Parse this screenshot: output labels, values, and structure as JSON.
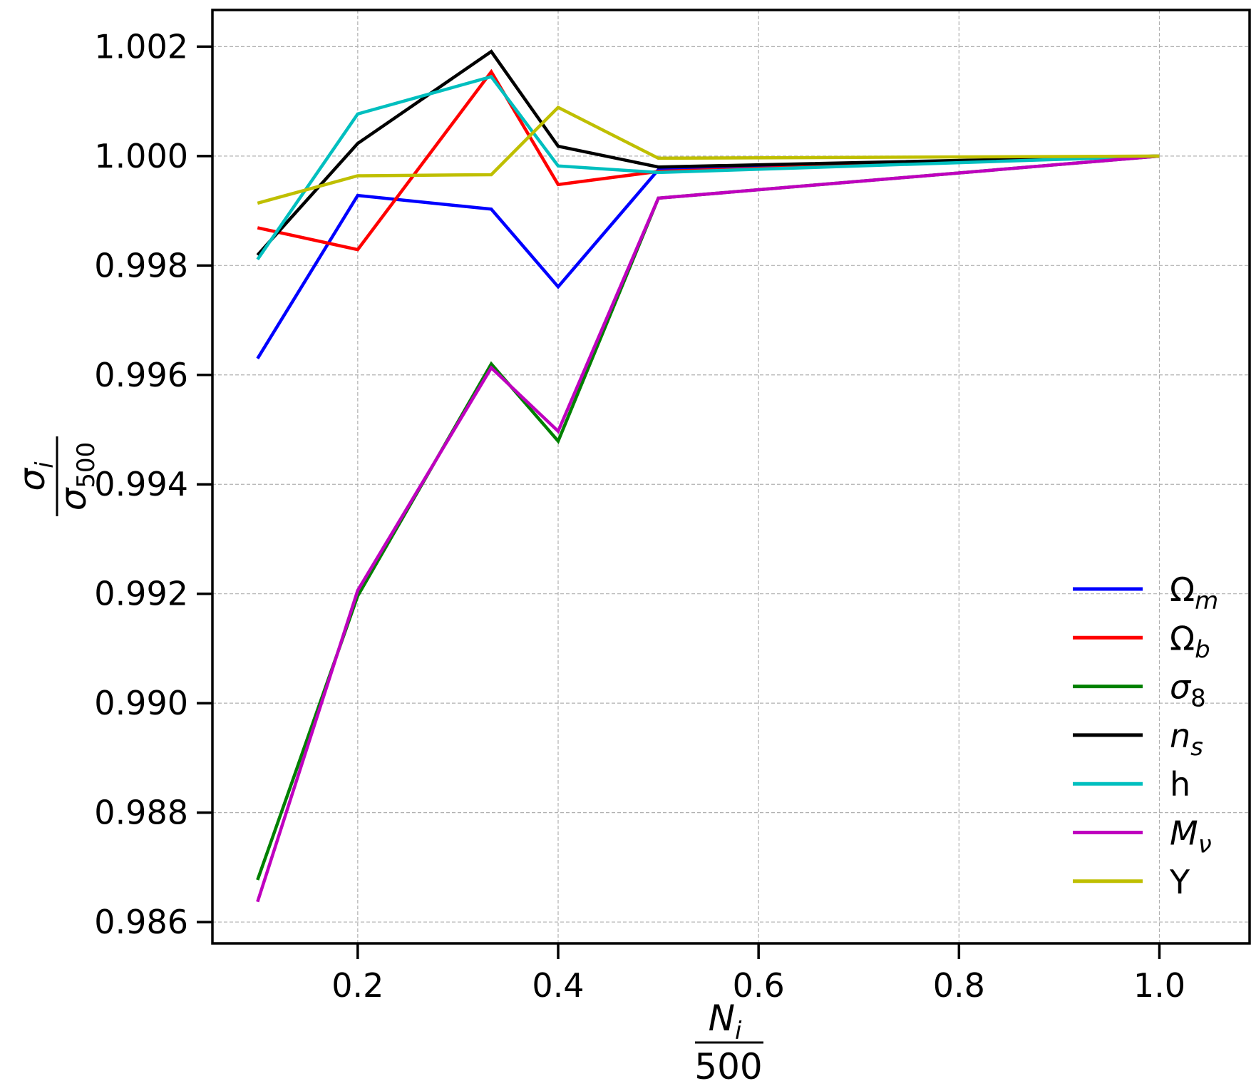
{
  "chart_data": {
    "type": "line",
    "xlabel": {
      "numerator": "N",
      "numerator_sub": "i",
      "denominator": "500"
    },
    "ylabel": {
      "numerator": "σ",
      "numerator_sub": "i",
      "denominator": "σ",
      "denominator_sub": "500"
    },
    "xlim": [
      0.055,
      1.09
    ],
    "ylim": [
      0.98561,
      1.00267
    ],
    "grid": true,
    "legend_position": "lower right",
    "xticks": [
      0.2,
      0.4,
      0.6,
      0.8,
      1.0
    ],
    "xtick_labels": [
      "0.2",
      "0.4",
      "0.6",
      "0.8",
      "1.0"
    ],
    "yticks": [
      0.986,
      0.988,
      0.99,
      0.992,
      0.994,
      0.996,
      0.998,
      1.0,
      1.002
    ],
    "ytick_labels": [
      "0.986",
      "0.988",
      "0.990",
      "0.992",
      "0.994",
      "0.996",
      "0.998",
      "1.000",
      "1.002"
    ],
    "x": [
      0.1,
      0.2,
      0.3333,
      0.4,
      0.5,
      1.0
    ],
    "series": [
      {
        "name": "Ω",
        "sub": "m",
        "color": "#0000ff",
        "values": [
          0.9963,
          0.99928,
          0.99903,
          0.99761,
          0.99975,
          1.0
        ]
      },
      {
        "name": "Ω",
        "sub": "b",
        "color": "#ff0000",
        "values": [
          0.99869,
          0.99829,
          1.00154,
          0.99948,
          0.99972,
          1.0
        ]
      },
      {
        "name": "σ",
        "sub": "8",
        "color": "#008000",
        "values": [
          0.98677,
          0.99196,
          0.9962,
          0.99479,
          0.99923,
          1.0
        ]
      },
      {
        "name": "n",
        "sub": "s",
        "color": "#000000",
        "values": [
          0.99819,
          1.00023,
          1.00191,
          1.00018,
          0.9998,
          1.0
        ]
      },
      {
        "name": "h",
        "sub": "",
        "color": "#00bfbf",
        "values": [
          0.99811,
          1.00077,
          1.00145,
          0.99982,
          0.9997,
          1.0
        ]
      },
      {
        "name": "M",
        "sub": "ν",
        "color": "#bf00bf",
        "values": [
          0.98637,
          0.99206,
          0.99613,
          0.99497,
          0.99923,
          1.0
        ]
      },
      {
        "name": "Y",
        "sub": "",
        "color": "#bfbf00",
        "values": [
          0.99914,
          0.99964,
          0.99966,
          1.00089,
          0.99996,
          1.0
        ]
      }
    ]
  }
}
